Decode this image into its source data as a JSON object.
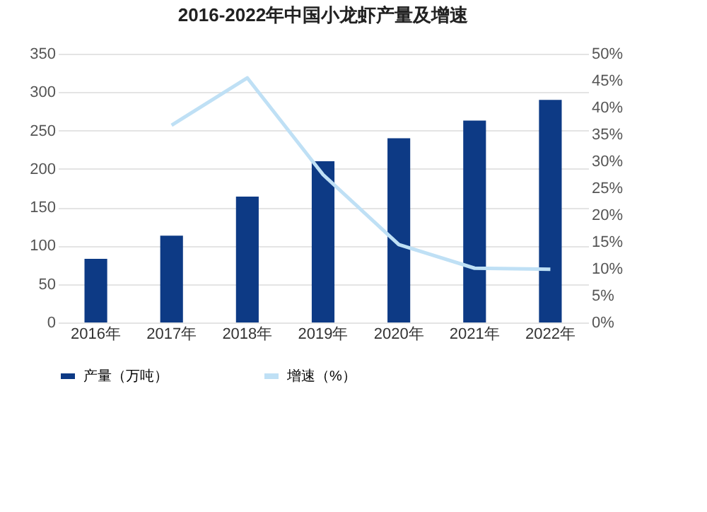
{
  "chart_data": {
    "type": "bar",
    "title": "2016-2022年中国小龙虾产量及增速",
    "categories": [
      "2016年",
      "2017年",
      "2018年",
      "2019年",
      "2020年",
      "2021年",
      "2022年"
    ],
    "series": [
      {
        "name": "产量（万吨）",
        "color": "#0d3a85",
        "values": [
          83,
          113,
          164,
          210,
          240,
          263,
          290
        ]
      },
      {
        "name": "增速（%）",
        "type": "line",
        "axis": "y2",
        "color": "#bfe0f5",
        "values": [
          null,
          36.7,
          45.5,
          27.5,
          14.5,
          10.1,
          9.9
        ]
      }
    ],
    "ylim": [
      0,
      350
    ],
    "yticks": [
      0,
      50,
      100,
      150,
      200,
      250,
      300,
      350
    ],
    "y2lim": [
      0,
      50
    ],
    "y2ticks": [
      {
        "value": 0,
        "label": "0%"
      },
      {
        "value": 5,
        "label": "5%"
      },
      {
        "value": 10,
        "label": "10%"
      },
      {
        "value": 15,
        "label": "15%"
      },
      {
        "value": 20,
        "label": "20%"
      },
      {
        "value": 25,
        "label": "25%"
      },
      {
        "value": 30,
        "label": "30%"
      },
      {
        "value": 35,
        "label": "35%"
      },
      {
        "value": 40,
        "label": "40%"
      },
      {
        "value": 45,
        "label": "45%"
      },
      {
        "value": 50,
        "label": "50%"
      }
    ],
    "grid": "y",
    "legend": "bottom",
    "marker": "none"
  }
}
